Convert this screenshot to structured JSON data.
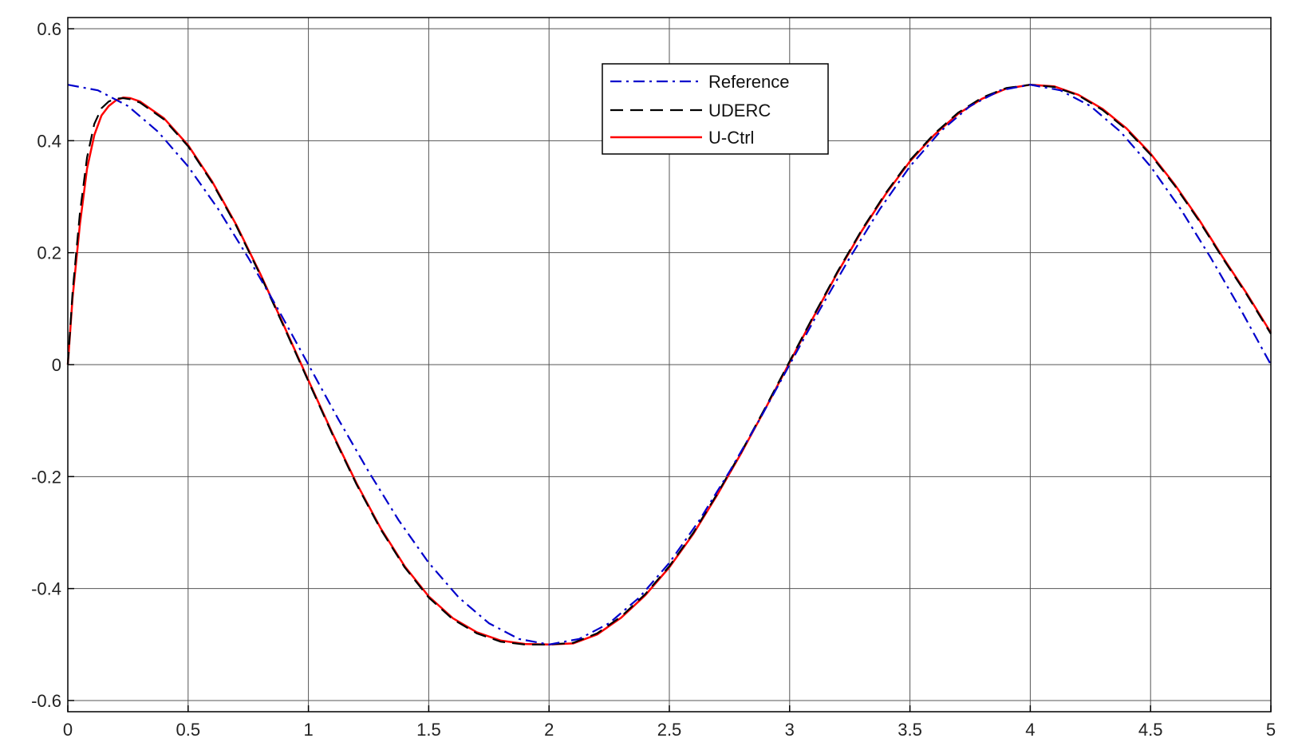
{
  "chart_data": {
    "type": "line",
    "title": "",
    "xlabel": "",
    "ylabel": "",
    "xlim": [
      0,
      5
    ],
    "ylim": [
      -0.62,
      0.62
    ],
    "xticks": [
      0,
      0.5,
      1,
      1.5,
      2,
      2.5,
      3,
      3.5,
      4,
      4.5,
      5
    ],
    "xtick_labels": [
      "0",
      "0.5",
      "1",
      "1.5",
      "2",
      "2.5",
      "3",
      "3.5",
      "4",
      "4.5",
      "5"
    ],
    "yticks": [
      0.6,
      0.4,
      0.2,
      0,
      -0.2,
      -0.4,
      -0.6
    ],
    "ytick_labels": [
      "0.6",
      "0.4",
      "0.2",
      "0",
      "-0.2",
      "-0.4",
      "-0.6"
    ],
    "grid": true,
    "legend": "top-center",
    "series": [
      {
        "name": "Reference",
        "color": "#0000cc",
        "style": "dashdot",
        "x": [
          0,
          0.125,
          0.25,
          0.375,
          0.5,
          0.625,
          0.75,
          0.875,
          1,
          1.125,
          1.25,
          1.375,
          1.5,
          1.625,
          1.75,
          1.875,
          2,
          2.125,
          2.25,
          2.375,
          2.5,
          2.625,
          2.75,
          2.875,
          3,
          3.125,
          3.25,
          3.375,
          3.5,
          3.625,
          3.75,
          3.875,
          4,
          4.125,
          4.25,
          4.375,
          4.5,
          4.625,
          4.75,
          4.875,
          5
        ],
        "y": [
          0.5,
          0.49,
          0.462,
          0.416,
          0.354,
          0.278,
          0.191,
          0.098,
          0,
          -0.098,
          -0.191,
          -0.278,
          -0.354,
          -0.416,
          -0.462,
          -0.49,
          -0.5,
          -0.49,
          -0.462,
          -0.416,
          -0.354,
          -0.278,
          -0.191,
          -0.098,
          0,
          0.098,
          0.191,
          0.278,
          0.354,
          0.416,
          0.462,
          0.49,
          0.5,
          0.49,
          0.462,
          0.416,
          0.354,
          0.278,
          0.191,
          0.098,
          0
        ]
      },
      {
        "name": "UDERC",
        "color": "#000000",
        "style": "dashed",
        "x": [
          0,
          0.02,
          0.05,
          0.08,
          0.11,
          0.14,
          0.17,
          0.2,
          0.23,
          0.26,
          0.3,
          0.4,
          0.5,
          0.6,
          0.7,
          0.8,
          0.9,
          1,
          1.1,
          1.2,
          1.3,
          1.4,
          1.5,
          1.6,
          1.7,
          1.8,
          1.9,
          2,
          2.1,
          2.2,
          2.3,
          2.4,
          2.5,
          2.6,
          2.7,
          2.8,
          2.9,
          3,
          3.1,
          3.2,
          3.3,
          3.4,
          3.5,
          3.6,
          3.7,
          3.8,
          3.9,
          4,
          4.1,
          4.2,
          4.3,
          4.4,
          4.5,
          4.6,
          4.7,
          4.8,
          4.9,
          5
        ],
        "y": [
          0,
          0.13,
          0.27,
          0.37,
          0.43,
          0.458,
          0.47,
          0.475,
          0.476,
          0.474,
          0.468,
          0.438,
          0.39,
          0.325,
          0.248,
          0.16,
          0.066,
          -0.03,
          -0.125,
          -0.214,
          -0.294,
          -0.362,
          -0.416,
          -0.455,
          -0.48,
          -0.495,
          -0.5,
          -0.5,
          -0.497,
          -0.48,
          -0.45,
          -0.41,
          -0.36,
          -0.3,
          -0.23,
          -0.155,
          -0.076,
          0.006,
          0.088,
          0.167,
          0.241,
          0.307,
          0.365,
          0.412,
          0.45,
          0.477,
          0.494,
          0.5,
          0.496,
          0.481,
          0.455,
          0.42,
          0.375,
          0.32,
          0.258,
          0.19,
          0.125,
          0.055
        ]
      },
      {
        "name": "U-Ctrl",
        "color": "#ff0000",
        "style": "solid",
        "x": [
          0,
          0.02,
          0.05,
          0.08,
          0.11,
          0.14,
          0.17,
          0.2,
          0.23,
          0.26,
          0.3,
          0.4,
          0.5,
          0.6,
          0.7,
          0.8,
          0.9,
          1,
          1.1,
          1.2,
          1.3,
          1.4,
          1.5,
          1.6,
          1.7,
          1.8,
          1.9,
          2,
          2.1,
          2.2,
          2.3,
          2.4,
          2.5,
          2.6,
          2.7,
          2.8,
          2.9,
          3,
          3.1,
          3.2,
          3.3,
          3.4,
          3.5,
          3.6,
          3.7,
          3.8,
          3.9,
          4,
          4.1,
          4.2,
          4.3,
          4.4,
          4.5,
          4.6,
          4.7,
          4.8,
          4.9,
          5
        ],
        "y": [
          0,
          0.12,
          0.25,
          0.35,
          0.41,
          0.445,
          0.462,
          0.472,
          0.477,
          0.476,
          0.47,
          0.44,
          0.392,
          0.327,
          0.25,
          0.162,
          0.068,
          -0.028,
          -0.123,
          -0.212,
          -0.292,
          -0.36,
          -0.414,
          -0.453,
          -0.478,
          -0.493,
          -0.499,
          -0.5,
          -0.498,
          -0.482,
          -0.452,
          -0.412,
          -0.362,
          -0.302,
          -0.232,
          -0.157,
          -0.078,
          0.004,
          0.086,
          0.165,
          0.239,
          0.305,
          0.363,
          0.41,
          0.448,
          0.475,
          0.493,
          0.5,
          0.497,
          0.482,
          0.457,
          0.422,
          0.377,
          0.322,
          0.26,
          0.192,
          0.127,
          0.057
        ]
      }
    ]
  }
}
